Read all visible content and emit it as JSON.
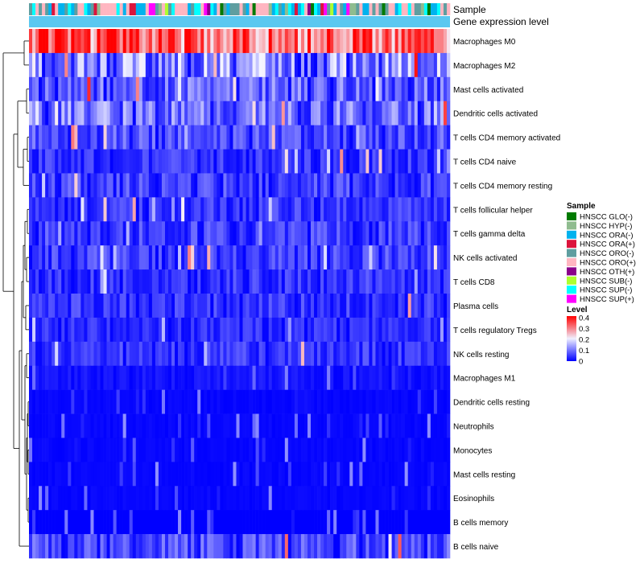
{
  "chart_data": {
    "type": "heatmap",
    "annotation_tracks": [
      "Sample",
      "Gene expression level"
    ],
    "rows": [
      "Macrophages M0",
      "Macrophages M2",
      "Mast cells activated",
      "Dendritic cells activated",
      "T cells CD4 memory activated",
      "T cells CD4 naive",
      "T cells CD4 memory resting",
      "T cells follicular helper",
      "T cells gamma delta",
      "NK cells activated",
      "T cells CD8",
      "Plasma cells",
      "T cells regulatory  Tregs",
      "NK cells resting",
      "Macrophages M1",
      "Dendritic cells resting",
      "Neutrophils",
      "Monocytes",
      "Mast cells resting",
      "Eosinophils",
      "B cells memory",
      "B cells naive"
    ],
    "row_mean_levels": [
      0.32,
      0.13,
      0.09,
      0.1,
      0.07,
      0.05,
      0.06,
      0.05,
      0.06,
      0.06,
      0.05,
      0.05,
      0.04,
      0.05,
      0.03,
      0.01,
      0.01,
      0.01,
      0.01,
      0.01,
      0.0,
      0.07
    ],
    "n_samples": 130,
    "legend": {
      "sample_title": "Sample",
      "samples": [
        {
          "label": "HNSCC GLO(-)",
          "color": "#007a00"
        },
        {
          "label": "HNSCC HYP(-)",
          "color": "#8fbc8f"
        },
        {
          "label": "HNSCC ORA(-)",
          "color": "#00b2ee"
        },
        {
          "label": "HNSCC ORA(+)",
          "color": "#dc143c"
        },
        {
          "label": "HNSCC ORO(-)",
          "color": "#5f9ea0"
        },
        {
          "label": "HNSCC ORO(+)",
          "color": "#ffb6c1"
        },
        {
          "label": "HNSCC OTH(+)",
          "color": "#8b008b"
        },
        {
          "label": "HNSCC SUB(-)",
          "color": "#adff2f"
        },
        {
          "label": "HNSCC SUP(-)",
          "color": "#00ffff"
        },
        {
          "label": "HNSCC SUP(+)",
          "color": "#ff00ff"
        }
      ],
      "level_title": "Level",
      "level_ticks": [
        "0.4",
        "0.3",
        "0.2",
        "0.1",
        "0"
      ],
      "level_values": [
        0.4,
        0.3,
        0.2,
        0.1,
        0
      ]
    },
    "color_scale": {
      "low": "#0000ff",
      "mid": "#f5f5ff",
      "high": "#ff0000",
      "min": 0,
      "mid_value": 0.2,
      "max": 0.4
    },
    "gene_expression_track_color": "#5bc8f0"
  }
}
